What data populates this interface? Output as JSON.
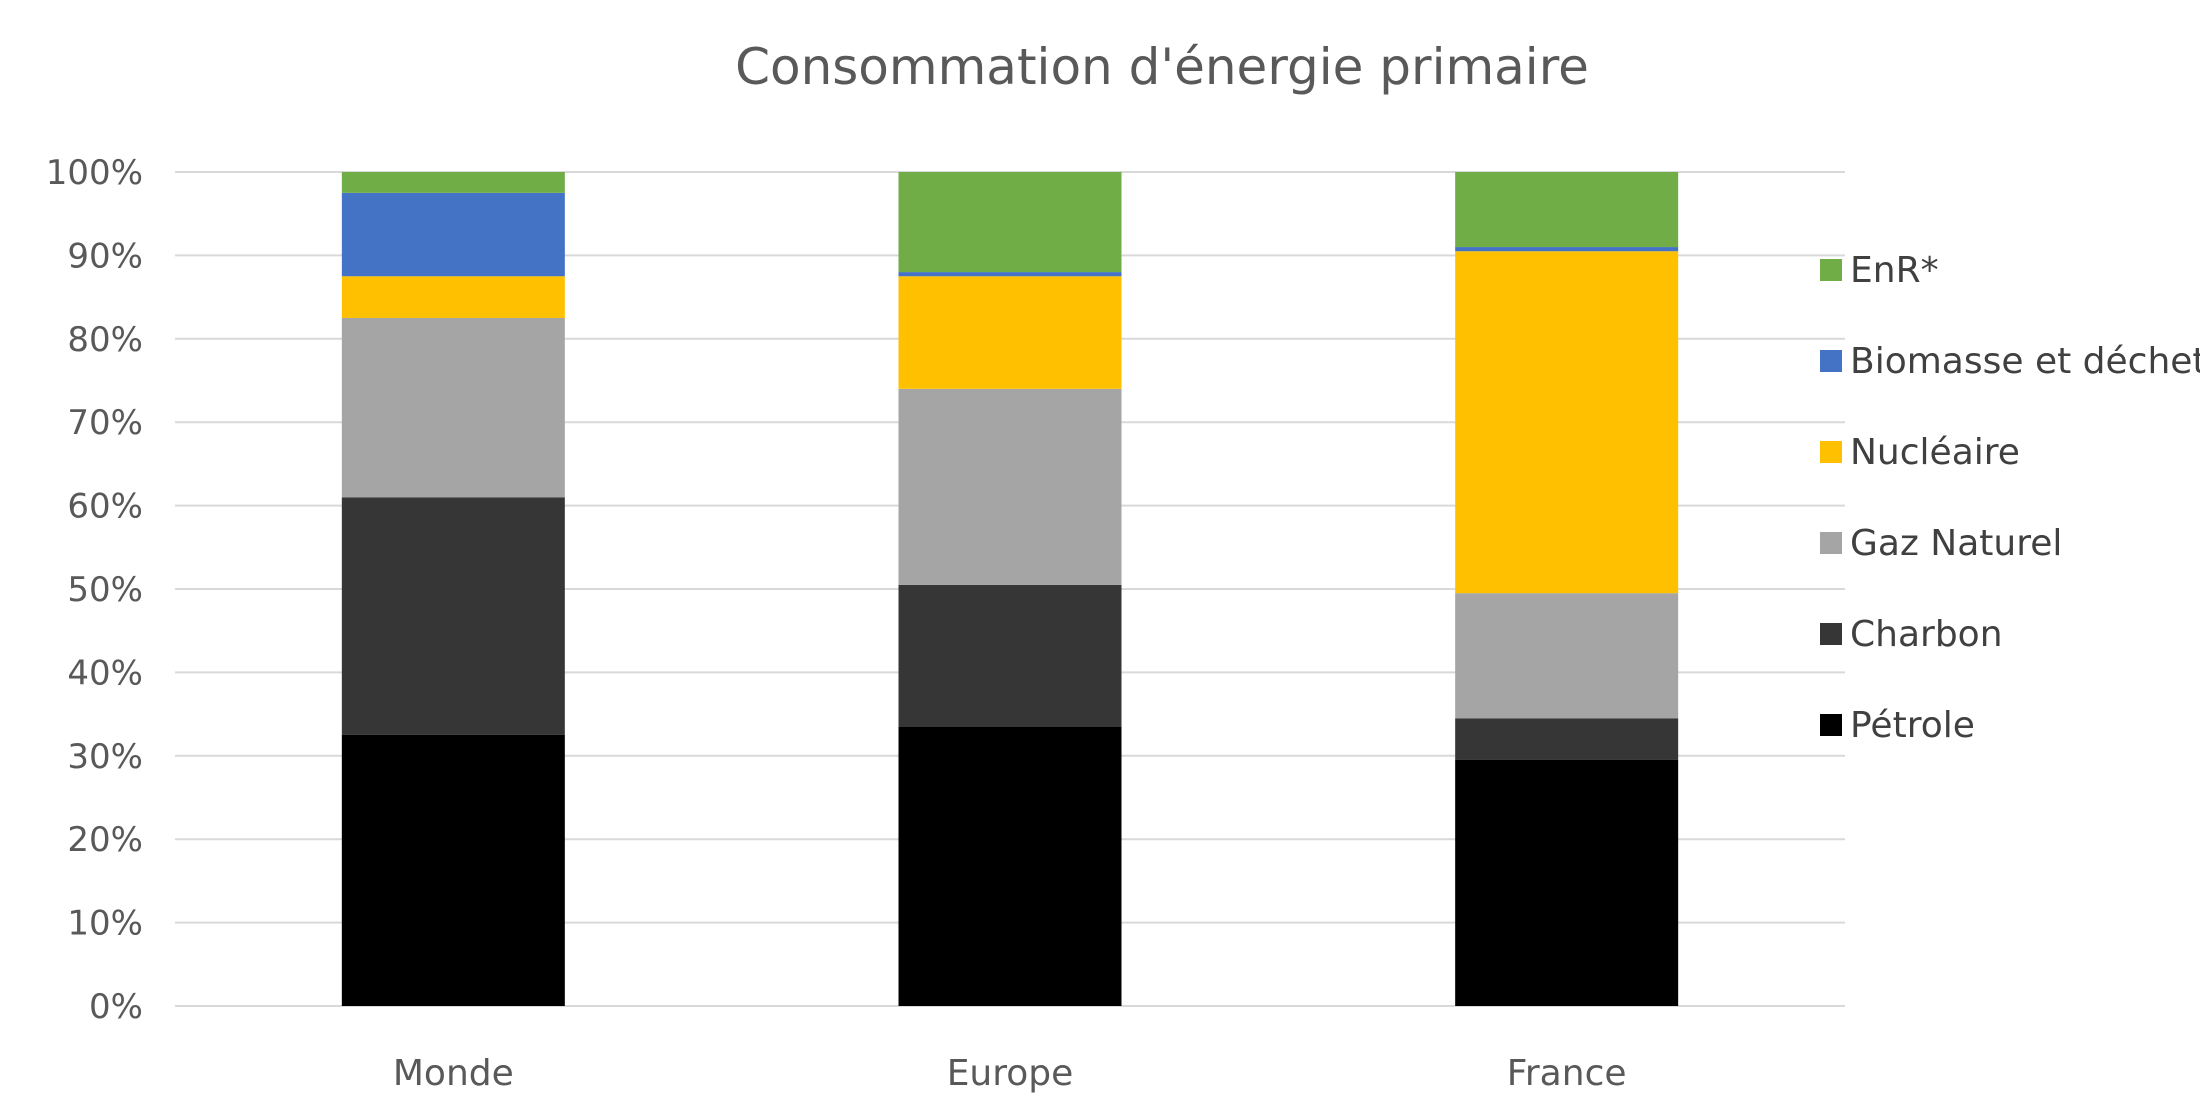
{
  "chart_data": {
    "type": "bar",
    "stacked": true,
    "title": "Consommation d'énergie primaire",
    "xlabel": "",
    "ylabel": "",
    "ylim": [
      0,
      100
    ],
    "y_ticks": [
      "0%",
      "10%",
      "20%",
      "30%",
      "40%",
      "50%",
      "60%",
      "70%",
      "80%",
      "90%",
      "100%"
    ],
    "categories": [
      "Monde",
      "Europe",
      "France"
    ],
    "grid": true,
    "legend_position": "right",
    "series": [
      {
        "name": "Pétrole",
        "color": "#000000",
        "values": [
          32.5,
          33.5,
          29.5
        ]
      },
      {
        "name": "Charbon",
        "color": "#363636",
        "values": [
          28.5,
          17.0,
          5.0
        ]
      },
      {
        "name": "Gaz Naturel",
        "color": "#a5a5a5",
        "values": [
          21.5,
          23.5,
          15.0
        ]
      },
      {
        "name": "Nucléaire",
        "color": "#ffc000",
        "values": [
          5.0,
          13.5,
          41.0
        ]
      },
      {
        "name": "Biomasse et déchets",
        "color": "#4472c4",
        "values": [
          10.0,
          0.5,
          0.5
        ]
      },
      {
        "name": "EnR*",
        "color": "#70ad47",
        "values": [
          2.5,
          12.0,
          9.0
        ]
      }
    ]
  }
}
